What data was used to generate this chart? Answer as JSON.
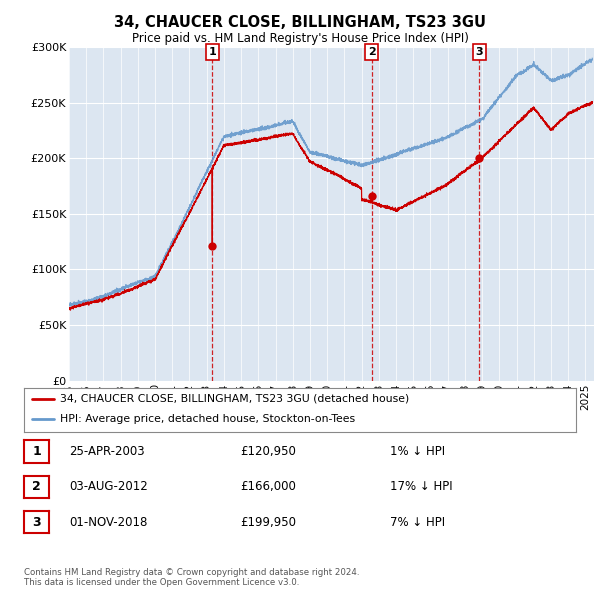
{
  "title": "34, CHAUCER CLOSE, BILLINGHAM, TS23 3GU",
  "subtitle": "Price paid vs. HM Land Registry's House Price Index (HPI)",
  "xlim_start": 1995.0,
  "xlim_end": 2025.5,
  "ylim": [
    0,
    300000
  ],
  "yticks": [
    0,
    50000,
    100000,
    150000,
    200000,
    250000,
    300000
  ],
  "ytick_labels": [
    "£0",
    "£50K",
    "£100K",
    "£150K",
    "£200K",
    "£250K",
    "£300K"
  ],
  "transactions": [
    {
      "date_num": 2003.32,
      "price": 120950,
      "label": "1"
    },
    {
      "date_num": 2012.59,
      "price": 166000,
      "label": "2"
    },
    {
      "date_num": 2018.84,
      "price": 199950,
      "label": "3"
    }
  ],
  "legend_entries": [
    "34, CHAUCER CLOSE, BILLINGHAM, TS23 3GU (detached house)",
    "HPI: Average price, detached house, Stockton-on-Tees"
  ],
  "table_rows": [
    {
      "num": "1",
      "date": "25-APR-2003",
      "price": "£120,950",
      "hpi": "1% ↓ HPI"
    },
    {
      "num": "2",
      "date": "03-AUG-2012",
      "price": "£166,000",
      "hpi": "17% ↓ HPI"
    },
    {
      "num": "3",
      "date": "01-NOV-2018",
      "price": "£199,950",
      "hpi": "7% ↓ HPI"
    }
  ],
  "footer": "Contains HM Land Registry data © Crown copyright and database right 2024.\nThis data is licensed under the Open Government Licence v3.0.",
  "red_color": "#cc0000",
  "blue_color": "#6699cc",
  "bg_color": "#dce6f1",
  "white": "#ffffff",
  "seed": 42
}
